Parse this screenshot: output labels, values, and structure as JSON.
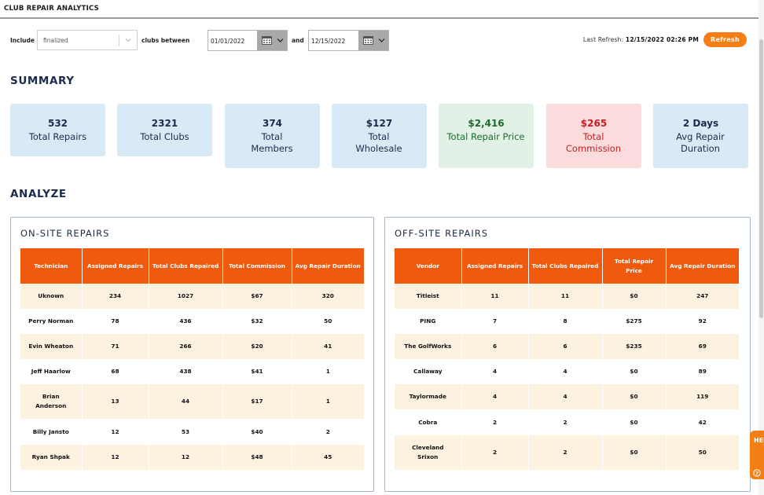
{
  "header": {
    "title": "CLUB REPAIR ANALYTICS"
  },
  "filters": {
    "include_label": "Include",
    "status_value": "finalized",
    "between_label": "clubs between",
    "start_date": "01/01/2022",
    "and_label": "and",
    "end_date": "12/15/2022",
    "last_refresh_label": "Last Refresh:",
    "last_refresh_value": "12/15/2022 02:26 PM",
    "refresh_button": "Refresh"
  },
  "summary": {
    "heading": "SUMMARY",
    "cards": [
      {
        "value": "532",
        "label": "Total Repairs",
        "color": "#d8eaf6"
      },
      {
        "value": "2321",
        "label": "Total Clubs",
        "color": "#d8eaf6"
      },
      {
        "value": "374",
        "label": "Total Members",
        "color": "#d8eaf6"
      },
      {
        "value": "$127",
        "label": "Total Wholesale",
        "color": "#d8eaf6"
      },
      {
        "value": "$2,416",
        "label": "Total Repair Price",
        "color": "#e2f1e5"
      },
      {
        "value": "$265",
        "label": "Total Commission",
        "color": "#fbdcdd"
      },
      {
        "value": "2 Days",
        "label": "Avg Repair Duration",
        "color": "#d8eaf6"
      }
    ]
  },
  "analyze": {
    "heading": "ANALYZE",
    "onsite": {
      "title": "ON-SITE REPAIRS",
      "columns": [
        "Technician",
        "Assigned Repairs",
        "Total Clubs Repaired",
        "Total Commission",
        "Avg Repair Duration"
      ],
      "rows": [
        [
          "Uknown",
          "234",
          "1027",
          "$67",
          "320"
        ],
        [
          "Perry Norman",
          "78",
          "436",
          "$32",
          "50"
        ],
        [
          "Evin Wheaton",
          "71",
          "266",
          "$20",
          "41"
        ],
        [
          "Jeff Haarlow",
          "68",
          "438",
          "$41",
          "1"
        ],
        [
          "Brian Anderson",
          "13",
          "44",
          "$17",
          "1"
        ],
        [
          "Billy Jansto",
          "12",
          "53",
          "$40",
          "2"
        ],
        [
          "Ryan Shpak",
          "12",
          "12",
          "$48",
          "45"
        ]
      ]
    },
    "offsite": {
      "title": "OFF-SITE REPAIRS",
      "columns": [
        "Vendor",
        "Assigned Repairs",
        "Total Clubs Repaired",
        "Total Repair Price",
        "Avg Repair Duration"
      ],
      "rows": [
        [
          "Titleist",
          "11",
          "11",
          "$0",
          "247"
        ],
        [
          "PING",
          "7",
          "8",
          "$275",
          "92"
        ],
        [
          "The GolfWorks",
          "6",
          "6",
          "$235",
          "69"
        ],
        [
          "Callaway",
          "4",
          "4",
          "$0",
          "89"
        ],
        [
          "Taylormade",
          "4",
          "4",
          "$0",
          "119"
        ],
        [
          "Cobra",
          "2",
          "2",
          "$0",
          "42"
        ],
        [
          "Cleveland Srixon",
          "2",
          "2",
          "$0",
          "50"
        ]
      ]
    }
  },
  "help": {
    "label": "HELP"
  }
}
